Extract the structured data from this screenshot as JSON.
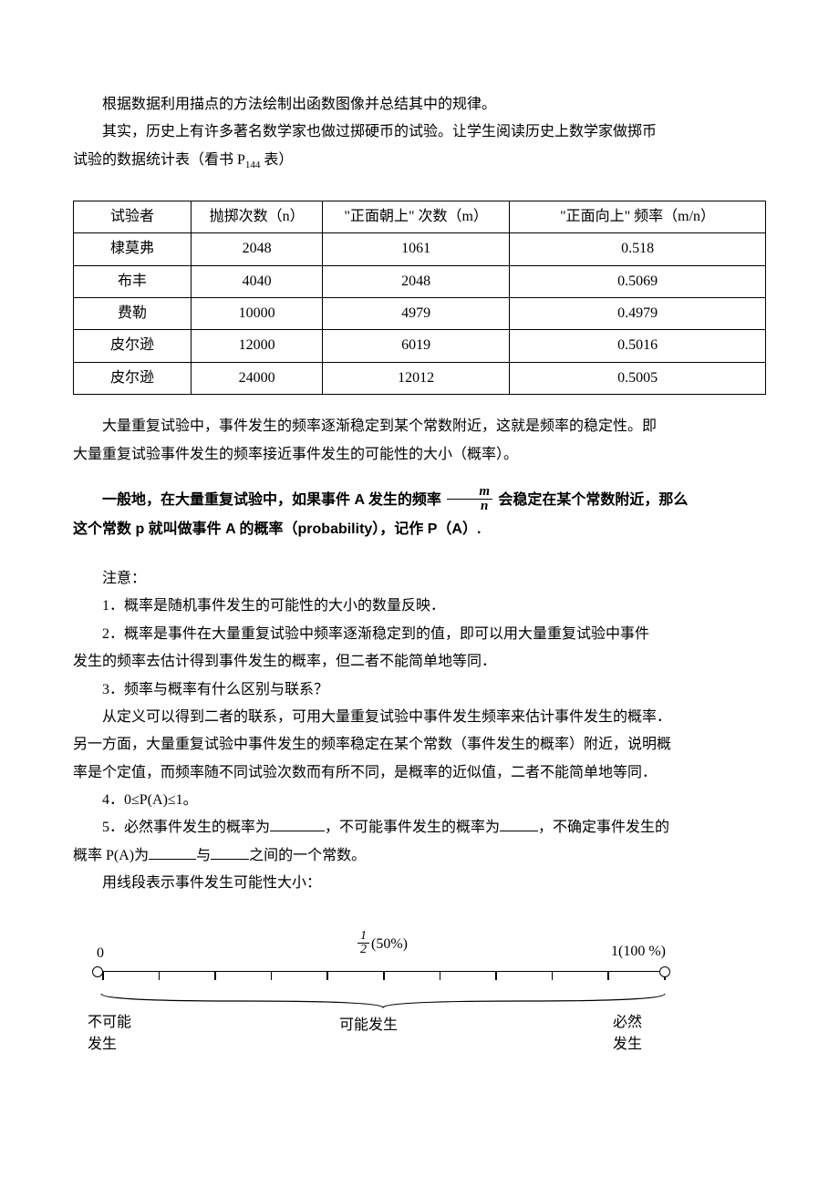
{
  "paragraphs": {
    "p1": "根据数据利用描点的方法绘制出函数图像并总结其中的规律。",
    "p2a": "其实，历史上有许多著名数学家也做过掷硬币的试验。让学生阅读历史上数学家做掷币",
    "p2b": "试验的数据统计表（看书 P",
    "p2b_sub": "144",
    "p2b_tail": " 表）"
  },
  "table": {
    "columns": [
      "试验者",
      "抛掷次数（n）",
      "\"正面朝上\" 次数（m）",
      "\"正面向上\" 频率（m/n）"
    ],
    "rows": [
      [
        "棣莫弗",
        "2048",
        "1061",
        "0.518"
      ],
      [
        "布丰",
        "4040",
        "2048",
        "0.5069"
      ],
      [
        "费勒",
        "10000",
        "4979",
        "0.4979"
      ],
      [
        "皮尔逊",
        "12000",
        "6019",
        "0.5016"
      ],
      [
        "皮尔逊",
        "24000",
        "12012",
        "0.5005"
      ]
    ],
    "col_align": [
      "center",
      "center",
      "center",
      "center"
    ],
    "border_color": "#000000"
  },
  "after_table": {
    "p3a": "大量重复试验中，事件发生的频率逐渐稳定到某个常数附近，这就是频率的稳定性。即",
    "p3b": "大量重复试验事件发生的频率接近事件发生的可能性的大小（概率）。"
  },
  "definition": {
    "line1_a": "一般地，在大量重复试验中，如果事件 A 发生的频率 ",
    "frac_top": "m",
    "frac_bot": "n",
    "line1_b": " 会稳定在某个常数附近，那么",
    "line2": "这个常数 p 就叫做事件 A 的概率（probability），记作 P（A）."
  },
  "notes": {
    "heading": "注意：",
    "n1": "1．概率是随机事件发生的可能性的大小的数量反映．",
    "n2a": "2．概率是事件在大量重复试验中频率逐渐稳定到的值，即可以用大量重复试验中事件",
    "n2b": "发生的频率去估计得到事件发生的概率，但二者不能简单地等同．",
    "n3": "3．频率与概率有什么区别与联系？",
    "n3a": "从定义可以得到二者的联系，可用大量重复试验中事件发生频率来估计事件发生的概率．",
    "n3b": "另一方面，大量重复试验中事件发生的频率稳定在某个常数（事件发生的概率）附近，说明概",
    "n3c": "率是个定值，而频率随不同试验次数而有所不同，是概率的近似值，二者不能简单地等同．",
    "n4": "4．0≤P(A)≤1。",
    "n5a": "5．必然事件发生的概率为",
    "n5b": "，不可能事件发生的概率为",
    "n5c": "，不确定事件发生的",
    "n5d": "概率 P(A)为",
    "n5e": "与",
    "n5f": "之间的一个常数。",
    "blank_widths": [
      "60px",
      "42px",
      "52px",
      "42px"
    ]
  },
  "diagram_intro": "用线段表示事件发生可能性大小：",
  "diagram": {
    "label_0": "0",
    "label_half_frac_top": "1",
    "label_half_frac_bot": "2",
    "label_half_suffix": "(50%)",
    "label_1": "1(100 %)",
    "tick_count": 11,
    "bottom_left_l1": "不可能",
    "bottom_left_l2": "发生",
    "bottom_mid": "可能发生",
    "bottom_right_l1": "必然",
    "bottom_right_l2": "发生",
    "line_color": "#000000"
  },
  "style": {
    "body_font_size_pt": 12,
    "bold_font_family": "SimHei",
    "background": "#ffffff",
    "text_color": "#000000"
  }
}
